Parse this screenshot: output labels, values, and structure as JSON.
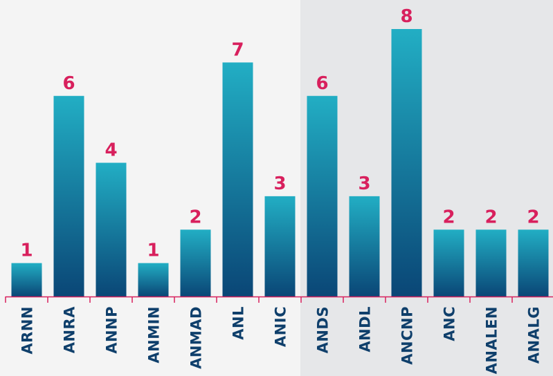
{
  "chart_data": {
    "type": "bar",
    "categories": [
      "ARNN",
      "ANRA",
      "ANNP",
      "ANMIN",
      "ANMAD",
      "ANL",
      "ANIC",
      "ANDS",
      "ANDL",
      "ANCNP",
      "ANC",
      "ANALEN",
      "ANALG"
    ],
    "values": [
      1,
      6,
      4,
      1,
      2,
      7,
      3,
      6,
      3,
      8,
      2,
      2,
      2
    ],
    "ylim": [
      0,
      8
    ],
    "grid": false,
    "legend": "none",
    "highlight_from_category": "ANDS"
  },
  "colors": {
    "page_background": "#f4f4f4",
    "highlight_background": "#e6e7e9",
    "bar_top": "#22aec4",
    "bar_bottom": "#0a4676",
    "value_label": "#d8205d",
    "category_label": "#0f3f6b",
    "axis": "#d8205d"
  }
}
